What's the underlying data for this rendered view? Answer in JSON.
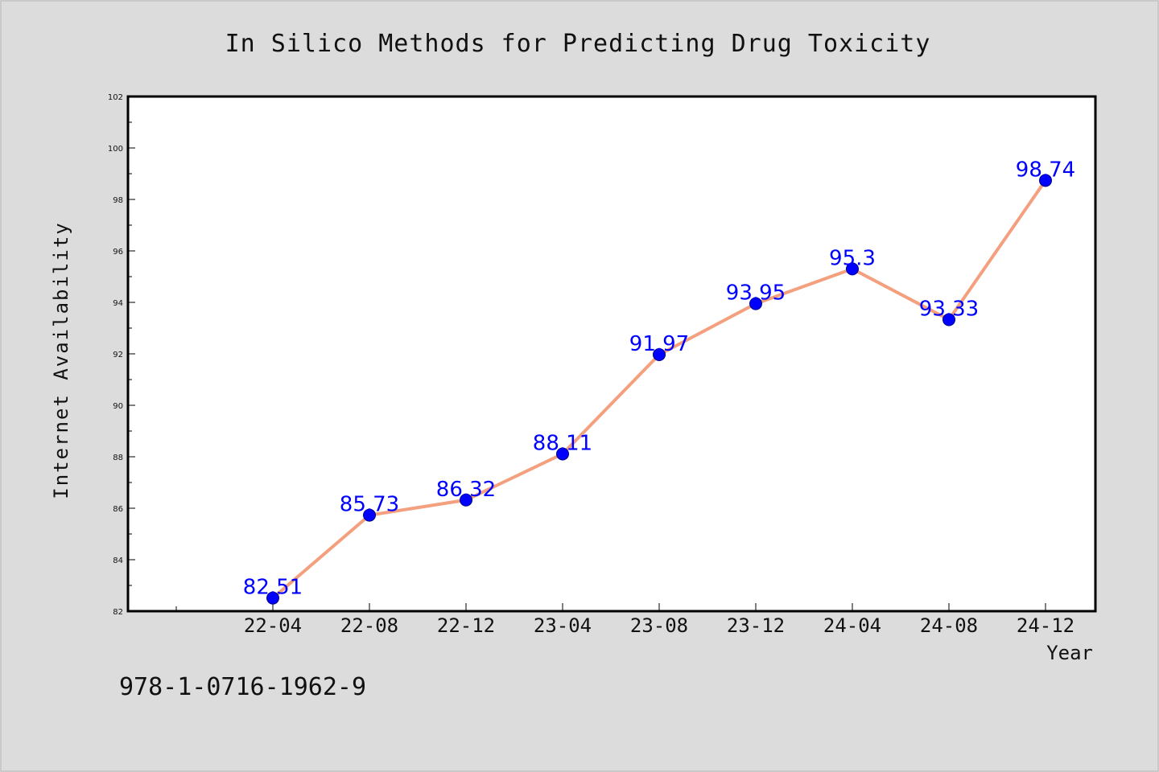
{
  "chart_data": {
    "type": "line",
    "title": "In Silico Methods for Predicting Drug Toxicity",
    "xlabel": "Year",
    "ylabel": "Internet Availability",
    "categories": [
      "22-04",
      "22-08",
      "22-12",
      "23-04",
      "23-08",
      "23-12",
      "24-04",
      "24-08",
      "24-12"
    ],
    "series": [
      {
        "values": [
          82.51,
          85.73,
          86.32,
          88.11,
          91.97,
          93.95,
          95.3,
          93.33,
          98.74
        ],
        "labels": [
          "82.51",
          "85.73",
          "86.32",
          "88.11",
          "91.97",
          "93.95",
          "95.3",
          "93.33",
          "98.74"
        ]
      }
    ],
    "ylim": [
      82,
      102
    ],
    "yticks": [
      "82",
      "84",
      "86",
      "88",
      "90",
      "92",
      "94",
      "96",
      "98",
      "100",
      "102"
    ],
    "grid": false,
    "line_color": "#f4a07f",
    "marker_color": "#0000ff",
    "label_color": "#0000ff"
  },
  "footer": {
    "isbn": "978-1-0716-1962-9"
  }
}
